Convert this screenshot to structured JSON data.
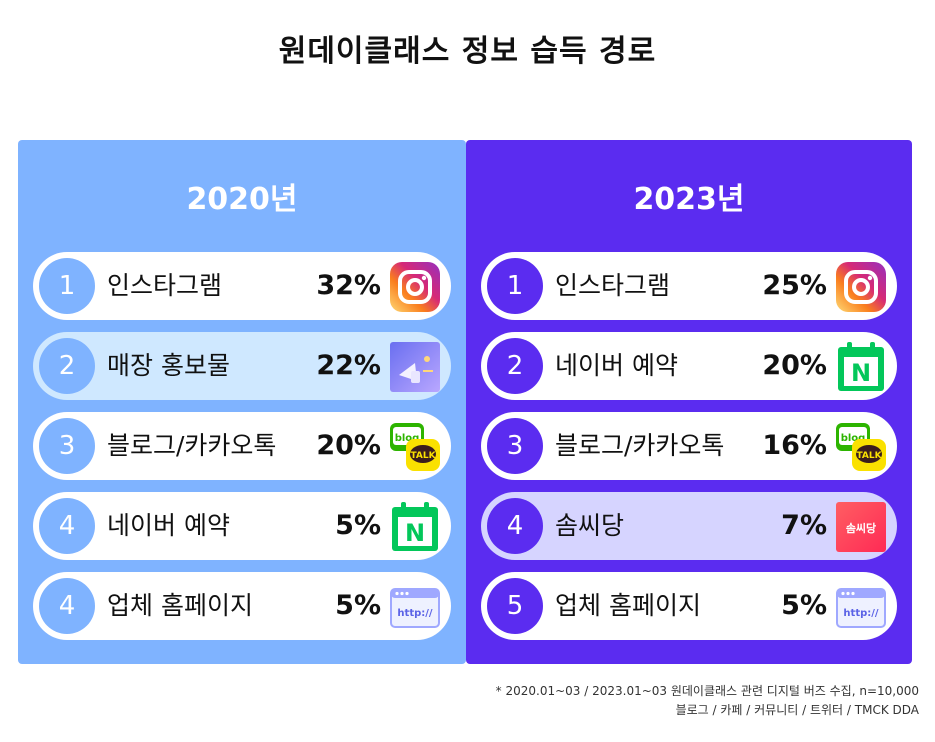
{
  "title": "원데이클래스 정보 습득 경로",
  "panels": {
    "left": {
      "year": "2020년",
      "rows": [
        {
          "rank": "1",
          "label": "인스타그램",
          "pct": "32%",
          "icon": "instagram-icon"
        },
        {
          "rank": "2",
          "label": "매장 홍보물",
          "pct": "22%",
          "icon": "flyer-icon"
        },
        {
          "rank": "3",
          "label": "블로그/카카오톡",
          "pct": "20%",
          "icon": "blog-talk-icon"
        },
        {
          "rank": "4",
          "label": "네이버 예약",
          "pct": "5%",
          "icon": "naver-booking-icon"
        },
        {
          "rank": "4",
          "label": "업체 홈페이지",
          "pct": "5%",
          "icon": "browser-http-icon"
        }
      ]
    },
    "right": {
      "year": "2023년",
      "rows": [
        {
          "rank": "1",
          "label": "인스타그램",
          "pct": "25%",
          "icon": "instagram-icon"
        },
        {
          "rank": "2",
          "label": "네이버 예약",
          "pct": "20%",
          "icon": "naver-booking-icon"
        },
        {
          "rank": "3",
          "label": "블로그/카카오톡",
          "pct": "16%",
          "icon": "blog-talk-icon"
        },
        {
          "rank": "4",
          "label": "솜씨당",
          "pct": "7%",
          "icon": "somssidang-logo-icon"
        },
        {
          "rank": "5",
          "label": "업체 홈페이지",
          "pct": "5%",
          "icon": "browser-http-icon"
        }
      ]
    }
  },
  "icon_text": {
    "blog": "blog",
    "talk": "TALK",
    "naver": "N",
    "http": "http://",
    "somssidang": "솜씨당"
  },
  "footnote": {
    "line1": "* 2020.01~03 / 2023.01~03 원데이클래스 관련 디지털 버즈 수집, n=10,000",
    "line2": "블로그 / 카페 / 커뮤니티 / 트위터 / TMCK DDA"
  },
  "colors": {
    "left_panel": "#7fb3ff",
    "right_panel": "#5b2cf0",
    "left_highlight": "#cfe8ff",
    "right_highlight": "#d6d4ff"
  }
}
